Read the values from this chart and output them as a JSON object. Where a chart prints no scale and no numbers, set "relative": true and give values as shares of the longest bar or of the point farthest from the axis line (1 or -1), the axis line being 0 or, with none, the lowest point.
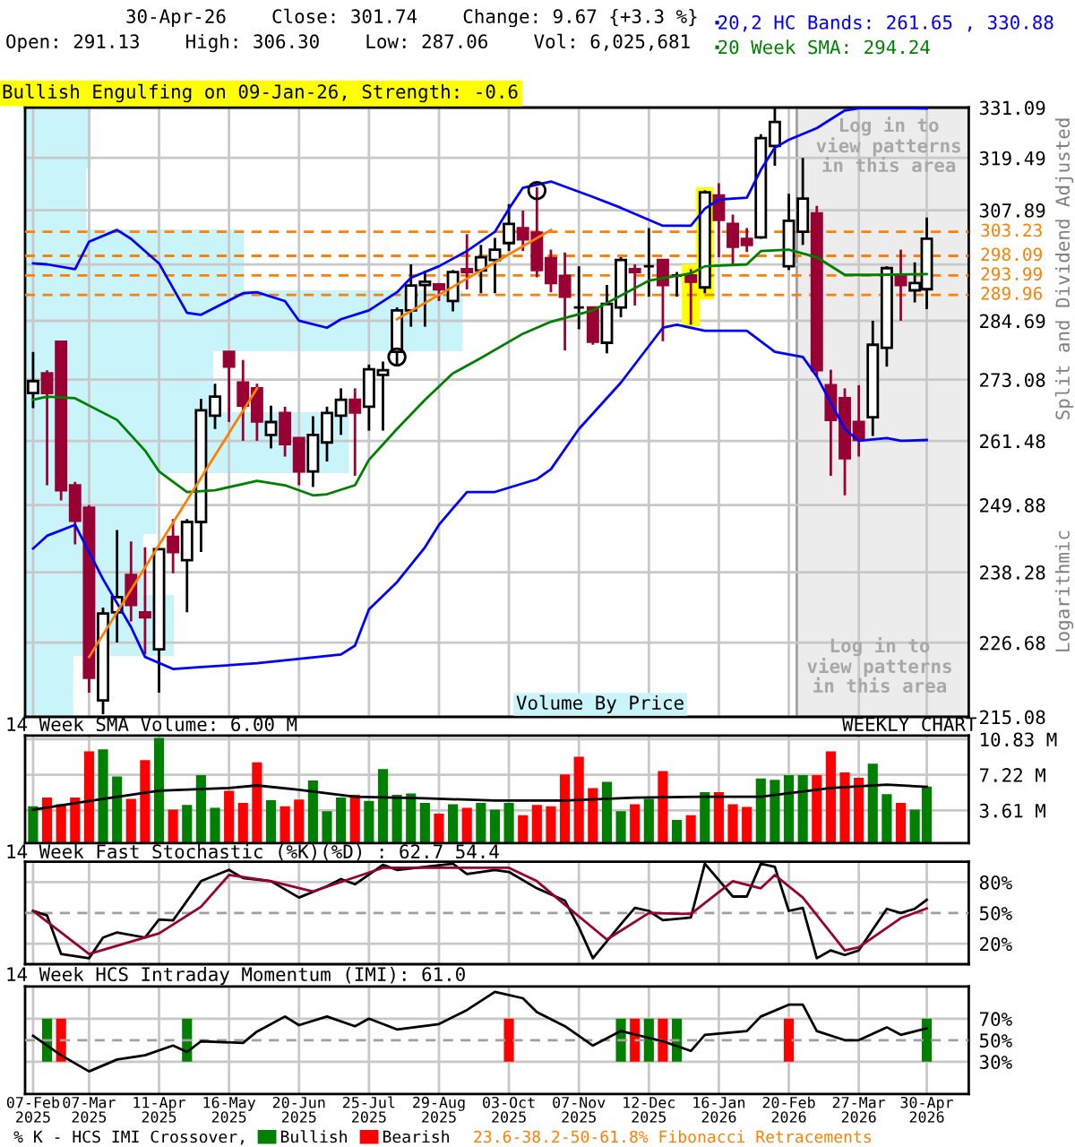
{
  "chart_data": [
    {
      "type": "candlestick",
      "title": "30-Apr-26    Close: 301.74    Change: 9.67 {+3.3 %}",
      "subtitle": "Open: 291.13    High: 306.30    Low: 287.06    Vol: 6,025,681",
      "ylabel": "Split and Dividend Adjusted",
      "annotations": [
        "Bullish Engulfing on 09-Jan-26, Strength: -0.6",
        "Log in to\nview patterns\nin this area",
        "Logarithmic",
        "Volume By Price"
      ],
      "x": [
        "2025-02-07",
        "2025-02-14",
        "2025-02-21",
        "2025-02-28",
        "2025-03-07",
        "2025-03-14",
        "2025-03-21",
        "2025-03-28",
        "2025-04-04",
        "2025-04-11",
        "2025-04-18",
        "2025-04-25",
        "2025-05-02",
        "2025-05-09",
        "2025-05-16",
        "2025-05-23",
        "2025-05-30",
        "2025-06-06",
        "2025-06-13",
        "2025-06-20",
        "2025-06-27",
        "2025-07-04",
        "2025-07-11",
        "2025-07-18",
        "2025-07-25",
        "2025-08-01",
        "2025-08-08",
        "2025-08-15",
        "2025-08-22",
        "2025-08-29",
        "2025-09-05",
        "2025-09-12",
        "2025-09-19",
        "2025-09-26",
        "2025-10-03",
        "2025-10-10",
        "2025-10-17",
        "2025-10-24",
        "2025-10-31",
        "2025-11-07",
        "2025-11-14",
        "2025-11-21",
        "2025-11-28",
        "2025-12-05",
        "2025-12-12",
        "2025-12-19",
        "2025-12-26",
        "2026-01-02",
        "2026-01-09",
        "2026-01-16",
        "2026-01-23",
        "2026-01-30",
        "2026-02-06",
        "2026-02-13",
        "2026-02-20",
        "2026-02-27",
        "2026-03-06",
        "2026-03-13",
        "2026-03-20",
        "2026-03-27",
        "2026-04-03",
        "2026-04-10",
        "2026-04-17",
        "2026-04-24",
        "2026-04-30"
      ],
      "ohlc": [
        [
          270.5,
          278.5,
          267.6,
          272.8
        ],
        [
          274.3,
          274.9,
          253.4,
          270.5
        ],
        [
          280.5,
          280.5,
          250.7,
          252.5
        ],
        [
          253.4,
          254.0,
          243.0,
          247.1
        ],
        [
          249.4,
          249.9,
          218.8,
          221.1
        ],
        [
          217.6,
          232.4,
          215.5,
          231.4
        ],
        [
          231.6,
          245.5,
          226.7,
          234.1
        ],
        [
          237.8,
          243.5,
          230.1,
          232.8
        ],
        [
          231.6,
          242.5,
          224.8,
          230.8
        ],
        [
          225.6,
          242.2,
          218.8,
          242.2
        ],
        [
          244.3,
          247.4,
          238.1,
          241.7
        ],
        [
          240.3,
          247.4,
          231.6,
          246.9
        ],
        [
          246.9,
          269.4,
          241.7,
          267.2
        ],
        [
          266.2,
          272.3,
          263.7,
          269.8
        ],
        [
          278.5,
          278.5,
          265.0,
          275.6
        ],
        [
          272.5,
          276.9,
          261.5,
          268.1
        ],
        [
          271.4,
          272.3,
          261.5,
          265.1
        ],
        [
          262.6,
          268.1,
          260.1,
          265.0
        ],
        [
          266.7,
          267.9,
          258.6,
          260.9
        ],
        [
          262.0,
          262.0,
          253.4,
          255.9
        ],
        [
          255.9,
          266.1,
          253.1,
          262.6
        ],
        [
          261.2,
          267.9,
          257.7,
          266.7
        ],
        [
          266.2,
          271.4,
          262.6,
          269.2
        ],
        [
          269.2,
          271.4,
          255.1,
          266.8
        ],
        [
          267.9,
          276.0,
          263.4,
          275.1
        ],
        [
          274.0,
          276.6,
          263.4,
          274.9
        ],
        [
          278.5,
          287.4,
          276.0,
          286.8
        ],
        [
          286.8,
          296.3,
          283.5,
          291.9
        ],
        [
          292.0,
          295.0,
          283.5,
          292.7
        ],
        [
          292.1,
          292.4,
          288.7,
          291.1
        ],
        [
          288.7,
          295.1,
          286.6,
          294.7
        ],
        [
          295.3,
          302.7,
          291.1,
          294.7
        ],
        [
          295.0,
          300.4,
          290.3,
          297.8
        ],
        [
          297.2,
          301.9,
          290.3,
          299.4
        ],
        [
          300.8,
          309.2,
          299.1,
          304.9
        ],
        [
          304.0,
          307.8,
          299.1,
          301.6
        ],
        [
          303.0,
          312.9,
          293.6,
          295.1
        ],
        [
          297.6,
          299.4,
          290.5,
          292.4
        ],
        [
          293.9,
          298.8,
          278.8,
          289.6
        ],
        [
          287.4,
          295.9,
          283.0,
          287.4
        ],
        [
          287.4,
          287.4,
          279.9,
          280.5
        ],
        [
          280.3,
          292.0,
          278.2,
          288.1
        ],
        [
          287.4,
          297.8,
          285.4,
          297.2
        ],
        [
          295.3,
          296.3,
          287.8,
          294.7
        ],
        [
          295.9,
          304.0,
          289.6,
          295.9
        ],
        [
          297.2,
          297.2,
          280.6,
          292.0
        ],
        [
          294.0,
          294.7,
          289.6,
          294.0
        ],
        [
          294.0,
          295.3,
          283.9,
          292.7
        ],
        [
          291.5,
          312.2,
          290.3,
          311.8
        ],
        [
          311.1,
          313.8,
          297.8,
          305.8
        ],
        [
          304.9,
          306.9,
          296.3,
          300.0
        ],
        [
          301.7,
          304.0,
          298.9,
          300.4
        ],
        [
          302.0,
          324.9,
          301.7,
          324.0
        ],
        [
          322.2,
          331.0,
          317.7,
          327.7
        ],
        [
          295.9,
          311.5,
          295.1,
          305.6
        ],
        [
          303.2,
          319.5,
          300.4,
          310.4
        ],
        [
          307.2,
          308.8,
          273.7,
          274.9
        ],
        [
          272.0,
          275.0,
          255.1,
          265.4
        ],
        [
          269.5,
          271.4,
          251.6,
          258.3
        ],
        [
          265.0,
          272.0,
          258.6,
          261.7
        ],
        [
          265.9,
          284.7,
          262.4,
          279.9
        ],
        [
          279.3,
          295.9,
          275.6,
          295.5
        ],
        [
          293.9,
          299.4,
          284.7,
          292.0
        ],
        [
          290.9,
          296.7,
          288.4,
          292.4
        ],
        [
          291.13,
          306.3,
          287.06,
          301.74
        ]
      ],
      "colors": [
        "#ffffff",
        "#990033",
        "#990033",
        "#990033",
        "#990033",
        "#ffffff",
        "#ffffff",
        "#990033",
        "#990033",
        "#ffffff",
        "#990033",
        "#ffffff",
        "#ffffff",
        "#ffffff",
        "#990033",
        "#990033",
        "#990033",
        "#ffffff",
        "#990033",
        "#990033",
        "#ffffff",
        "#ffffff",
        "#ffffff",
        "#990033",
        "#ffffff",
        "#ffffff",
        "#ffffff",
        "#ffffff",
        "#ffffff",
        "#990033",
        "#ffffff",
        "#990033",
        "#ffffff",
        "#ffffff",
        "#ffffff",
        "#990033",
        "#990033",
        "#990033",
        "#990033",
        "#000000",
        "#990033",
        "#ffffff",
        "#ffffff",
        "#990033",
        "#000000",
        "#990033",
        "#000000",
        "#990033",
        "#ffffff",
        "#990033",
        "#990033",
        "#990033",
        "#ffffff",
        "#ffffff",
        "#ffffff",
        "#ffffff",
        "#990033",
        "#990033",
        "#990033",
        "#990033",
        "#ffffff",
        "#ffffff",
        "#990033",
        "#ffffff",
        "#ffffff"
      ],
      "series": [
        {
          "type": "bar",
          "color": "#ffff00",
          "x": [
            "2026-01-02",
            "2026-01-09"
          ],
          "base": [
            283.5,
            289.0
          ],
          "values": [
            12.8,
            23.9
          ]
        },
        {
          "type": "line",
          "name": "20,2 HC Bands: 261.65 , 330.88",
          "color": "#0000ff",
          "x": [
            "2025-02-07",
            "2025-02-14",
            "2025-02-28",
            "2025-03-07",
            "2025-03-21",
            "2025-03-28",
            "2025-04-11",
            "2025-04-25",
            "2025-05-02",
            "2025-05-23",
            "2025-05-30",
            "2025-06-13",
            "2025-06-20",
            "2025-07-04",
            "2025-07-11",
            "2025-07-25",
            "2025-08-08",
            "2025-08-15",
            "2025-08-29",
            "2025-09-12",
            "2025-09-26",
            "2025-10-03",
            "2025-10-10",
            "2025-10-24",
            "2025-11-14",
            "2025-11-28",
            "2025-12-19",
            "2026-01-02",
            "2026-01-09",
            "2026-01-16",
            "2026-01-30",
            "2026-02-06",
            "2026-02-13",
            "2026-02-20",
            "2026-03-06",
            "2026-03-20",
            "2026-03-27",
            "2026-04-30"
          ],
          "values": [
            296.5,
            296.3,
            295.3,
            301.1,
            303.6,
            301.7,
            296.5,
            286.3,
            285.9,
            290.3,
            290.5,
            288.7,
            284.7,
            283.3,
            285.0,
            286.8,
            290.5,
            293.5,
            295.9,
            299.1,
            303.2,
            308.2,
            312.8,
            314.2,
            310.8,
            308.4,
            304.5,
            304.5,
            308.2,
            310.2,
            310.6,
            316.8,
            321.8,
            323.6,
            326.3,
            330.4,
            330.9,
            330.88
          ]
        },
        {
          "type": "line",
          "color": "#0000ff",
          "x": [
            "2025-02-07",
            "2025-02-14",
            "2025-02-28",
            "2025-03-14",
            "2025-03-28",
            "2025-04-04",
            "2025-04-18",
            "2025-05-02",
            "2025-05-30",
            "2025-07-11",
            "2025-07-18",
            "2025-07-25",
            "2025-08-08",
            "2025-08-22",
            "2025-08-29",
            "2025-09-12",
            "2025-09-26",
            "2025-10-17",
            "2025-10-24",
            "2025-11-07",
            "2025-11-28",
            "2025-12-19",
            "2025-12-26",
            "2026-01-09",
            "2026-01-30",
            "2026-02-13",
            "2026-02-27",
            "2026-03-06",
            "2026-03-20",
            "2026-03-27",
            "2026-04-10",
            "2026-04-17",
            "2026-04-30"
          ],
          "values": [
            242.3,
            244.5,
            246.4,
            237.1,
            229.2,
            224.4,
            222.5,
            222.8,
            223.4,
            224.8,
            226.2,
            232.1,
            236.6,
            242.5,
            246.4,
            252.2,
            252.2,
            254.5,
            256.3,
            263.7,
            272.5,
            283.3,
            283.9,
            282.7,
            282.7,
            278.5,
            277.5,
            273.7,
            263.7,
            261.5,
            262.0,
            261.5,
            261.65
          ]
        },
        {
          "type": "line",
          "name": "20 Week SMA: 294.24",
          "color": "#008000",
          "x": [
            "2025-02-07",
            "2025-02-14",
            "2025-02-28",
            "2025-03-21",
            "2025-04-04",
            "2025-04-11",
            "2025-04-25",
            "2025-05-09",
            "2025-05-30",
            "2025-06-13",
            "2025-06-27",
            "2025-07-04",
            "2025-07-18",
            "2025-07-25",
            "2025-08-08",
            "2025-08-22",
            "2025-09-05",
            "2025-09-19",
            "2025-10-10",
            "2025-10-24",
            "2025-11-14",
            "2025-12-12",
            "2026-01-02",
            "2026-01-09",
            "2026-01-30",
            "2026-02-06",
            "2026-02-20",
            "2026-03-06",
            "2026-03-20",
            "2026-04-03",
            "2026-04-30"
          ],
          "values": [
            269.2,
            269.8,
            269.5,
            265.4,
            259.7,
            255.9,
            252.2,
            252.5,
            254.2,
            253.4,
            251.6,
            251.8,
            253.4,
            258.0,
            263.7,
            269.2,
            274.3,
            277.3,
            282.1,
            284.5,
            286.8,
            292.9,
            294.4,
            295.9,
            296.3,
            299.1,
            299.4,
            297.8,
            294.1,
            294.1,
            294.24
          ]
        },
        {
          "type": "line",
          "color": "#ff8000",
          "x": [
            "2025-03-07",
            "2025-05-30"
          ],
          "values": [
            224.4,
            271.4
          ]
        },
        {
          "type": "line",
          "color": "#ff8000",
          "x": [
            "2025-08-08",
            "2025-10-24"
          ],
          "values": [
            285.0,
            303.6
          ]
        },
        {
          "type": "scatter",
          "marker": "circle",
          "color": "#000000",
          "x": [
            "2025-08-08",
            "2025-10-17"
          ],
          "values": [
            277.5,
            312.2
          ]
        }
      ],
      "xlim": [
        "2025-02-03",
        "2026-05-21"
      ],
      "xticks": [
        "2025-02-07",
        "2025-03-07",
        "2025-04-11",
        "2025-05-16",
        "2025-06-20",
        "2025-07-25",
        "2025-08-29",
        "2025-10-03",
        "2025-11-07",
        "2025-12-12",
        "2026-01-16",
        "2026-02-20",
        "2026-03-27",
        "2026-04-30"
      ],
      "ylim": [
        215.08,
        331.09
      ],
      "yticks": [
        215.08,
        226.68,
        238.28,
        249.88,
        261.48,
        273.08,
        284.69,
        {
          "value": 296.29,
          "label": null
        },
        307.89,
        319.49,
        331.09
      ],
      "log": true,
      "grid": true,
      "legend": "top right",
      "tick_labels": "y",
      "ref_lines": [
        {
          "axis": "y",
          "value": 303.23,
          "label": "303.23",
          "color": "#ff8000",
          "line_style": "dashed"
        },
        {
          "axis": "y",
          "value": 298.09,
          "label": "298.09",
          "color": "#ff8000",
          "line_style": "dashed"
        },
        {
          "axis": "y",
          "value": 293.99,
          "label": "293.99",
          "color": "#ff8000",
          "line_style": "dashed"
        },
        {
          "axis": "y",
          "value": 289.96,
          "label": "289.96",
          "color": "#ff8000",
          "line_style": "dashed"
        }
      ],
      "bands": [
        {
          "axis": "x",
          "from": "2026-02-24",
          "to": "2026-05-21",
          "label": "Log in to\nview patterns\nin this area",
          "color": "#ececec"
        }
      ]
    },
    {
      "type": "bar",
      "orientation": "horizontal",
      "relative": true,
      "color": "#c8f4fa",
      "categories": [
        null,
        null,
        null,
        null,
        null,
        null,
        null,
        null,
        null,
        null
      ],
      "values": [
        0.15,
        0.14,
        0.5,
        1,
        0.43,
        0.74,
        0.3,
        0.27,
        0.34,
        0.11
      ]
    },
    {
      "type": "bar",
      "title": "14 Week SMA Volume: 6.00 M",
      "annotations": [
        "WEEKLY CHART"
      ],
      "x": [
        "2025-02-07",
        "2025-02-14",
        "2025-02-21",
        "2025-02-28",
        "2025-03-07",
        "2025-03-14",
        "2025-03-21",
        "2025-03-28",
        "2025-04-04",
        "2025-04-11",
        "2025-04-18",
        "2025-04-25",
        "2025-05-02",
        "2025-05-09",
        "2025-05-16",
        "2025-05-23",
        "2025-05-30",
        "2025-06-06",
        "2025-06-13",
        "2025-06-20",
        "2025-06-27",
        "2025-07-04",
        "2025-07-11",
        "2025-07-18",
        "2025-07-25",
        "2025-08-01",
        "2025-08-08",
        "2025-08-15",
        "2025-08-22",
        "2025-08-29",
        "2025-09-05",
        "2025-09-12",
        "2025-09-19",
        "2025-09-26",
        "2025-10-03",
        "2025-10-10",
        "2025-10-17",
        "2025-10-24",
        "2025-10-31",
        "2025-11-07",
        "2025-11-14",
        "2025-11-21",
        "2025-11-28",
        "2025-12-05",
        "2025-12-12",
        "2025-12-19",
        "2025-12-26",
        "2026-01-02",
        "2026-01-09",
        "2026-01-16",
        "2026-01-23",
        "2026-01-30",
        "2026-02-06",
        "2026-02-13",
        "2026-02-20",
        "2026-02-27",
        "2026-03-06",
        "2026-03-13",
        "2026-03-20",
        "2026-03-27",
        "2026-04-03",
        "2026-04-10",
        "2026-04-17",
        "2026-04-24",
        "2026-04-30"
      ],
      "series": [
        {
          "type": "bar",
          "colors": [
            "#008000",
            "#ff0000",
            "#ff0000",
            "#ff0000",
            "#ff0000",
            "#008000",
            "#008000",
            "#ff0000",
            "#ff0000",
            "#008000",
            "#ff0000",
            "#008000",
            "#008000",
            "#008000",
            "#ff0000",
            "#ff0000",
            "#ff0000",
            "#008000",
            "#ff0000",
            "#ff0000",
            "#008000",
            "#008000",
            "#008000",
            "#ff0000",
            "#008000",
            "#008000",
            "#008000",
            "#008000",
            "#008000",
            "#ff0000",
            "#008000",
            "#ff0000",
            "#008000",
            "#008000",
            "#008000",
            "#ff0000",
            "#ff0000",
            "#ff0000",
            "#ff0000",
            "#ff0000",
            "#ff0000",
            "#008000",
            "#008000",
            "#ff0000",
            "#008000",
            "#ff0000",
            "#008000",
            "#ff0000",
            "#008000",
            "#ff0000",
            "#ff0000",
            "#ff0000",
            "#008000",
            "#008000",
            "#008000",
            "#008000",
            "#ff0000",
            "#ff0000",
            "#ff0000",
            "#ff0000",
            "#008000",
            "#008000",
            "#ff0000",
            "#008000",
            "#008000"
          ],
          "values": [
            4.02,
            4.91,
            4.23,
            4.91,
            9.59,
            9.79,
            7.04,
            4.77,
            8.7,
            10.96,
            3.68,
            4.16,
            7.18,
            3.88,
            5.6,
            4.36,
            8.49,
            4.64,
            4.02,
            4.71,
            6.63,
            3.54,
            4.91,
            5.18,
            4.57,
            7.8,
            5.18,
            5.32,
            4.36,
            3.27,
            4.23,
            3.88,
            4.36,
            3.68,
            4.36,
            3.13,
            4.16,
            4.02,
            7.25,
            9.04,
            5.87,
            6.5,
            3.54,
            4.23,
            4.77,
            7.6,
            2.65,
            3.13,
            5.47,
            5.47,
            4.23,
            3.95,
            6.84,
            6.7,
            7.18,
            7.18,
            7.18,
            9.59,
            7.45,
            6.91,
            8.35,
            5.25,
            4.36,
            3.68,
            6.03
          ]
        },
        {
          "type": "line",
          "color": "#000000",
          "x": [
            "2025-02-07",
            "2025-03-07",
            "2025-04-11",
            "2025-05-16",
            "2025-05-30",
            "2025-06-20",
            "2025-07-18",
            "2025-08-22",
            "2025-09-26",
            "2025-10-31",
            "2025-12-05",
            "2026-01-09",
            "2026-02-06",
            "2026-03-13",
            "2026-04-10",
            "2026-04-30"
          ],
          "values": [
            3.68,
            4.57,
            5.6,
            5.88,
            6.14,
            5.7,
            5.0,
            4.84,
            4.6,
            4.6,
            4.9,
            5.0,
            5.0,
            5.87,
            6.22,
            6.0
          ]
        }
      ],
      "xlim": [
        "2025-02-03",
        "2026-05-21"
      ],
      "xticks": [
        "2025-02-07",
        "2025-03-07",
        "2025-04-11",
        "2025-05-16",
        "2025-06-20",
        "2025-07-25",
        "2025-08-29",
        "2025-10-03",
        "2025-11-07",
        "2025-12-12",
        "2026-01-16",
        "2026-02-20",
        "2026-03-27",
        "2026-04-30"
      ],
      "ylim": [
        0.3,
        11.2
      ],
      "yticks": [
        {
          "value": 3.61,
          "label": "3.61 M"
        },
        {
          "value": 7.22,
          "label": "7.22 M"
        },
        {
          "value": 10.83,
          "label": "10.83 M"
        }
      ],
      "grid": true,
      "tick_labels": "y"
    },
    {
      "type": "line",
      "title": "14 Week Fast Stochastic (%K)(%D) : 62.7 54.4",
      "series": [
        {
          "color": "#000000",
          "x": [
            "2025-02-07",
            "2025-02-14",
            "2025-02-21",
            "2025-03-07",
            "2025-03-14",
            "2025-03-21",
            "2025-04-04",
            "2025-04-11",
            "2025-04-18",
            "2025-05-02",
            "2025-05-16",
            "2025-05-23",
            "2025-06-06",
            "2025-06-20",
            "2025-07-04",
            "2025-07-11",
            "2025-07-18",
            "2025-08-01",
            "2025-08-08",
            "2025-08-22",
            "2025-09-05",
            "2025-09-12",
            "2025-09-26",
            "2025-10-03",
            "2025-10-17",
            "2025-10-31",
            "2025-11-07",
            "2025-11-14",
            "2025-11-28",
            "2025-12-05",
            "2025-12-12",
            "2025-12-19",
            "2026-01-02",
            "2026-01-09",
            "2026-01-23",
            "2026-01-30",
            "2026-02-06",
            "2026-02-13",
            "2026-02-20",
            "2026-02-27",
            "2026-03-06",
            "2026-03-13",
            "2026-03-20",
            "2026-03-27",
            "2026-04-10",
            "2026-04-17",
            "2026-04-24",
            "2026-04-30"
          ],
          "values": [
            52,
            47.5,
            10,
            5.8,
            26,
            31,
            26,
            43.6,
            42.7,
            81,
            92,
            84,
            81,
            65,
            76,
            83,
            78,
            97,
            92,
            95,
            98,
            88,
            92,
            90,
            74,
            62,
            36,
            5.8,
            39,
            55,
            52,
            43,
            45.5,
            98,
            66,
            66,
            98,
            95,
            52,
            55,
            5.8,
            13.5,
            9,
            13.5,
            54,
            50,
            54,
            62.7
          ]
        },
        {
          "color": "#990033",
          "x": [
            "2025-02-07",
            "2025-03-07",
            "2025-04-11",
            "2025-05-02",
            "2025-05-16",
            "2025-06-06",
            "2025-06-27",
            "2025-08-01",
            "2025-10-03",
            "2025-10-17",
            "2025-10-31",
            "2025-11-21",
            "2025-12-12",
            "2026-01-02",
            "2026-01-23",
            "2026-02-06",
            "2026-02-13",
            "2026-02-27",
            "2026-03-20",
            "2026-03-27",
            "2026-04-17",
            "2026-04-30"
          ],
          "values": [
            52,
            10,
            30,
            56,
            87,
            81,
            71,
            94,
            94,
            81,
            58,
            24,
            50,
            49,
            81,
            74,
            87,
            65,
            13.5,
            16.5,
            45,
            54.4
          ]
        }
      ],
      "xlim": [
        "2025-02-03",
        "2026-05-21"
      ],
      "xticks": [
        "2025-02-07",
        "2025-03-07",
        "2025-04-11",
        "2025-05-16",
        "2025-06-20",
        "2025-07-25",
        "2025-08-29",
        "2025-10-03",
        "2025-11-07",
        "2025-12-12",
        "2026-01-16",
        "2026-02-20",
        "2026-03-27",
        "2026-04-30"
      ],
      "ylim": [
        0,
        100
      ],
      "yticks": [
        {
          "value": 20,
          "label": "20%"
        },
        {
          "value": 50,
          "label": "50%"
        },
        {
          "value": 80,
          "label": "80%"
        }
      ],
      "grid": true,
      "tick_labels": "y",
      "ref_lines": [
        {
          "axis": "y",
          "value": 50,
          "label": null,
          "color": "#a0a0a0",
          "line_style": "dashed"
        }
      ]
    },
    {
      "type": "line",
      "title": "14 Week HCS Intraday Momentum (IMI): 61.0",
      "legend": "bottom",
      "legend_title": "% K - HCS IMI Crossover,",
      "annotations": [
        "23.6-38.2-50-61.8% Fibonacci Retracements"
      ],
      "series": [
        {
          "type": "bar",
          "name": "Bullish",
          "color": "#008000",
          "x": [
            "2025-02-14",
            "2025-04-25",
            "2025-11-28",
            "2025-12-12",
            "2025-12-26",
            "2026-04-30"
          ],
          "base": [
            30,
            30,
            30,
            30,
            30,
            30
          ],
          "values": [
            40,
            40,
            40,
            40,
            40,
            40
          ]
        },
        {
          "type": "bar",
          "name": "Bearish",
          "color": "#ff0000",
          "x": [
            "2025-02-21",
            "2025-10-03",
            "2025-12-05",
            "2025-12-19",
            "2026-02-20"
          ],
          "base": [
            30,
            30,
            30,
            30,
            30
          ],
          "values": [
            40,
            40,
            40,
            40,
            40
          ]
        },
        {
          "type": "line",
          "color": "#000000",
          "x": [
            "2025-02-07",
            "2025-02-21",
            "2025-03-07",
            "2025-03-21",
            "2025-04-04",
            "2025-04-18",
            "2025-04-25",
            "2025-05-02",
            "2025-05-23",
            "2025-05-30",
            "2025-06-13",
            "2025-06-20",
            "2025-07-04",
            "2025-07-18",
            "2025-07-25",
            "2025-08-08",
            "2025-08-29",
            "2025-09-12",
            "2025-09-26",
            "2025-10-10",
            "2025-10-17",
            "2025-10-31",
            "2025-11-14",
            "2025-11-28",
            "2025-12-19",
            "2026-01-02",
            "2026-01-09",
            "2026-01-30",
            "2026-02-06",
            "2026-02-20",
            "2026-02-27",
            "2026-03-06",
            "2026-03-20",
            "2026-03-27",
            "2026-04-10",
            "2026-04-17",
            "2026-04-30"
          ],
          "values": [
            54,
            36,
            21,
            32,
            36,
            45,
            39,
            49,
            47.4,
            58,
            72,
            64,
            72,
            63,
            70,
            60,
            65,
            78,
            95,
            89,
            76,
            63,
            45,
            58.5,
            49,
            40,
            55,
            58.5,
            72,
            83,
            83,
            58.5,
            50,
            50,
            62,
            55,
            61
          ]
        }
      ],
      "xlim": [
        "2025-02-03",
        "2026-05-21"
      ],
      "xticks": [
        {
          "value": "2025-02-07",
          "label": "07-Feb\n2025"
        },
        {
          "value": "2025-03-07",
          "label": "07-Mar\n2025"
        },
        {
          "value": "2025-04-11",
          "label": "11-Apr\n2025"
        },
        {
          "value": "2025-05-16",
          "label": "16-May\n2025"
        },
        {
          "value": "2025-06-20",
          "label": "20-Jun\n2025"
        },
        {
          "value": "2025-07-25",
          "label": "25-Jul\n2025"
        },
        {
          "value": "2025-08-29",
          "label": "29-Aug\n2025"
        },
        {
          "value": "2025-10-03",
          "label": "03-Oct\n2025"
        },
        {
          "value": "2025-11-07",
          "label": "07-Nov\n2025"
        },
        {
          "value": "2025-12-12",
          "label": "12-Dec\n2025"
        },
        {
          "value": "2026-01-16",
          "label": "16-Jan\n2026"
        },
        {
          "value": "2026-02-20",
          "label": "20-Feb\n2026"
        },
        {
          "value": "2026-03-27",
          "label": "27-Mar\n2026"
        },
        {
          "value": "2026-04-30",
          "label": "30-Apr\n2026"
        }
      ],
      "ylim": [
        0,
        100
      ],
      "yticks": [
        {
          "value": 30,
          "label": "30%"
        },
        {
          "value": 50,
          "label": "50%"
        },
        {
          "value": 70,
          "label": "70%"
        }
      ],
      "grid": true,
      "ref_lines": [
        {
          "axis": "y",
          "value": 50,
          "label": null,
          "color": "#a0a0a0",
          "line_style": "dashed"
        }
      ]
    }
  ]
}
